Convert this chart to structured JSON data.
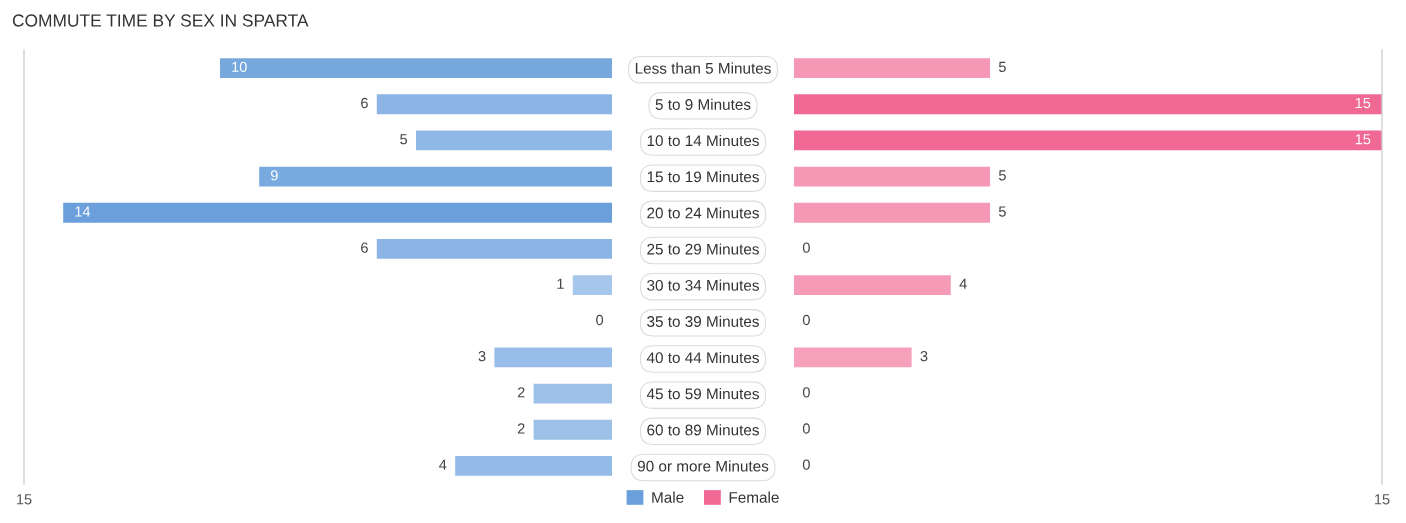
{
  "chart_data": [
    {
      "type": "bar",
      "orientation": "horizontal",
      "title": "COMMUTE TIME BY SEX IN SPARTA",
      "categories": [
        "Less than 5 Minutes",
        "5 to 9 Minutes",
        "10 to 14 Minutes",
        "15 to 19 Minutes",
        "20 to 24 Minutes",
        "25 to 29 Minutes",
        "30 to 34 Minutes",
        "35 to 39 Minutes",
        "40 to 44 Minutes",
        "45 to 59 Minutes",
        "60 to 89 Minutes",
        "90 or more Minutes"
      ],
      "series": [
        {
          "name": "Male",
          "color": "#6a9fdc",
          "values": [
            10,
            6,
            5,
            9,
            14,
            6,
            1,
            0,
            3,
            2,
            2,
            4
          ],
          "colors": [
            "#76a8de",
            "#8cb5e5",
            "#90b8e6",
            "#79aadf",
            "#6a9fdc",
            "#8cb5e5",
            "#a6c6eb",
            "#a9c8ec",
            "#98bde8",
            "#9dc0e9",
            "#9dc0e9",
            "#94bae7"
          ]
        }
      ],
      "xlim": [
        15,
        0
      ],
      "xticks": [
        15
      ],
      "data_labels": true,
      "legend": "bottom"
    },
    {
      "type": "bar",
      "orientation": "horizontal",
      "series": [
        {
          "name": "Female",
          "color": "#f06894",
          "values": [
            5,
            15,
            15,
            5,
            5,
            0,
            4,
            0,
            3,
            0,
            0,
            0
          ],
          "colors": [
            "#f598b6",
            "#f06894",
            "#f06894",
            "#f598b6",
            "#f598b6",
            "#f7aac4",
            "#f59bb8",
            "#f7aac4",
            "#f6a0bc",
            "#f7aac4",
            "#f7aac4",
            "#f7aac4"
          ]
        }
      ],
      "xlim": [
        0,
        15
      ],
      "xticks": [
        15
      ],
      "data_labels": true,
      "legend": "bottom",
      "tick_labels": "x"
    }
  ]
}
